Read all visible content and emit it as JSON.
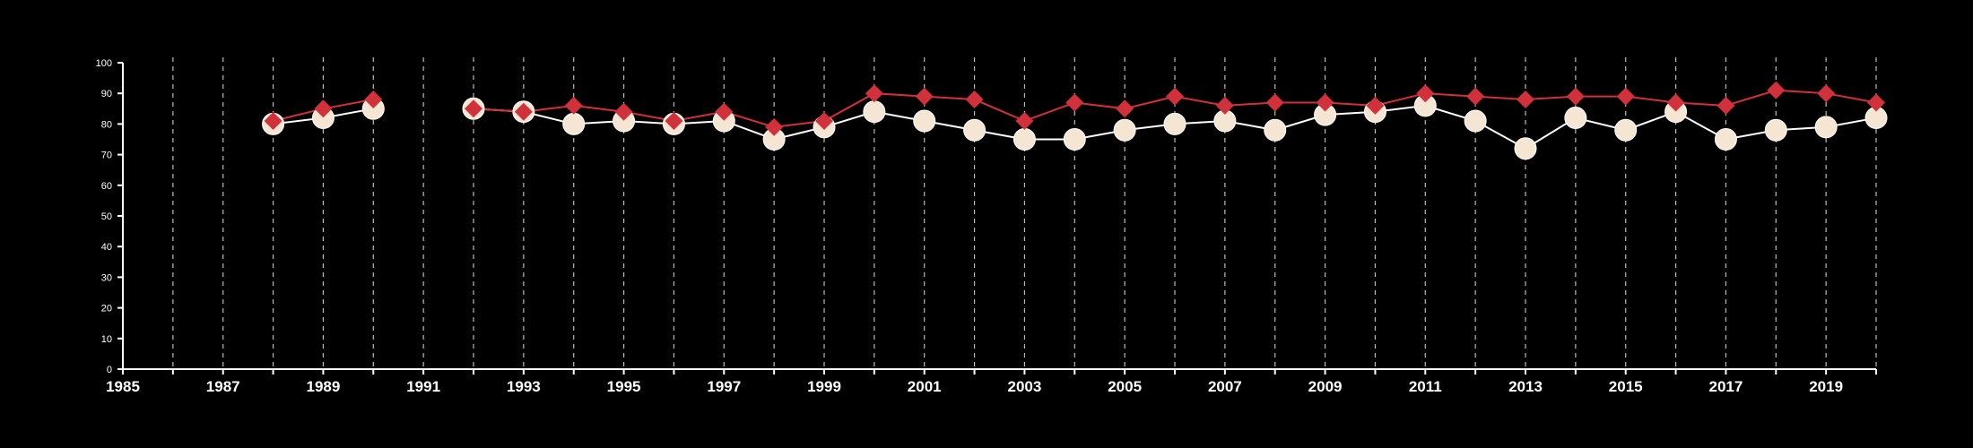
{
  "chart_data": {
    "type": "line",
    "title": "",
    "xlabel": "",
    "ylabel": "",
    "xlim": [
      1985,
      2020
    ],
    "ylim": [
      0,
      100
    ],
    "x_ticks": [
      1985,
      1987,
      1989,
      1991,
      1993,
      1995,
      1997,
      1999,
      2001,
      2003,
      2005,
      2007,
      2009,
      2011,
      2013,
      2015,
      2017,
      2019
    ],
    "y_ticks": [
      0,
      10,
      20,
      30,
      40,
      50,
      60,
      70,
      80,
      90,
      100
    ],
    "vertical_gridlines": "dashed, every year",
    "x": [
      1985,
      1986,
      1987,
      1988,
      1989,
      1990,
      1991,
      1992,
      1993,
      1994,
      1995,
      1996,
      1997,
      1998,
      1999,
      2000,
      2001,
      2002,
      2003,
      2004,
      2005,
      2006,
      2007,
      2008,
      2009,
      2010,
      2011,
      2012,
      2013,
      2014,
      2015,
      2016,
      2017,
      2018,
      2019,
      2020
    ],
    "series": [
      {
        "marker": "circle",
        "color": "#f5e6d3",
        "values": [
          null,
          null,
          null,
          80,
          82,
          85,
          null,
          85,
          84,
          80,
          81,
          80,
          81,
          75,
          79,
          84,
          81,
          78,
          75,
          75,
          78,
          80,
          81,
          78,
          83,
          84,
          86,
          81,
          72,
          82,
          78,
          84,
          75,
          78,
          79,
          82
        ]
      },
      {
        "marker": "diamond",
        "color": "#d0313a",
        "values": [
          null,
          null,
          null,
          81,
          85,
          88,
          null,
          85,
          84,
          86,
          84,
          81,
          84,
          79,
          81,
          90,
          89,
          88,
          81,
          87,
          85,
          89,
          86,
          87,
          87,
          86,
          90,
          89,
          88,
          89,
          89,
          87,
          86,
          91,
          90,
          87
        ]
      }
    ]
  }
}
